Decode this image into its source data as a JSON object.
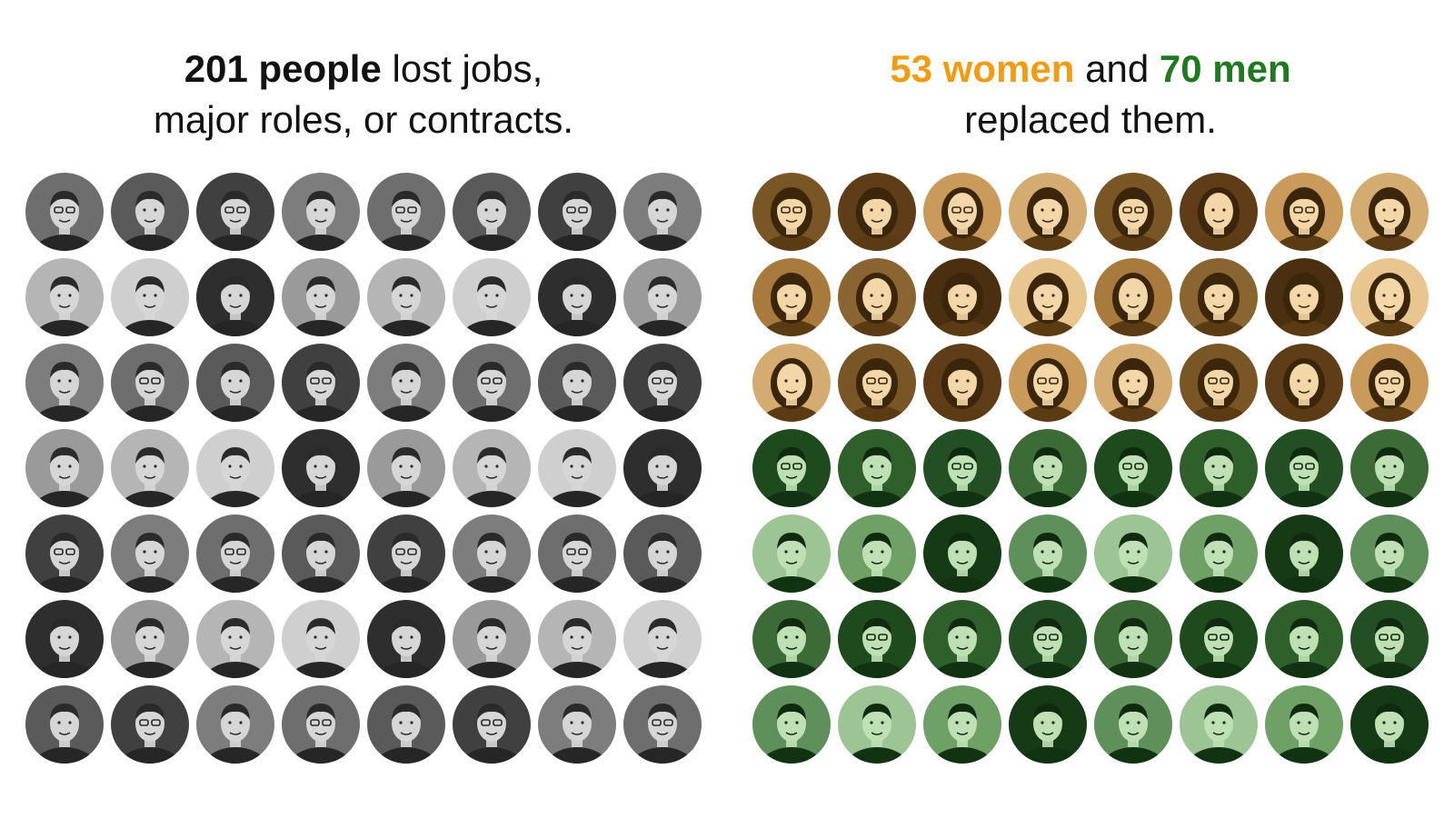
{
  "left_panel": {
    "heading_bold": "201 people",
    "heading_rest": " lost jobs,",
    "heading_line2": "major roles, or contracts.",
    "bold_color": "#121212",
    "face_style": {
      "bg": [
        "#6e6e6e",
        "#9a9a9a",
        "#5a5a5a",
        "#b5b5b5",
        "#404040",
        "#cfcfcf",
        "#7d7d7d",
        "#2e2e2e"
      ],
      "skin": "#d6d6d6",
      "hair": "#2a2a2a",
      "suit": "#262626"
    },
    "rows": 7,
    "columns": 8
  },
  "right_panel": {
    "women_label": "53 women",
    "and_label": " and ",
    "men_label": "70 men",
    "heading_line2": "replaced them.",
    "women_color": "#f39c12",
    "men_color": "#1f7a1f",
    "women_rows": 3,
    "men_rows": 4,
    "columns": 8,
    "women_face_style": {
      "bg": [
        "#7a5526",
        "#e9c58f",
        "#5e3d18",
        "#a97a3e",
        "#c99a5a",
        "#8a6532",
        "#d4ab70",
        "#4a2f10"
      ],
      "skin": "#f3d7a8",
      "hair": "#3b260c",
      "suit": "#5a3b14"
    },
    "men_face_style": {
      "bg": [
        "#1e4a1e",
        "#5f8f5a",
        "#2f5f2a",
        "#9cc495",
        "#244f24",
        "#6fa066",
        "#3d6b38",
        "#163a16"
      ],
      "skin": "#bfe0b5",
      "hair": "#0f2a0f",
      "suit": "#123312"
    }
  }
}
